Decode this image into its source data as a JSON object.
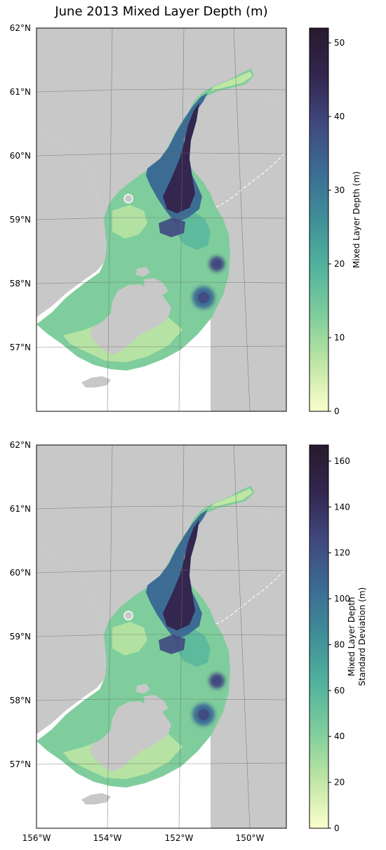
{
  "title": "June 2013 Mixed Layer Depth (m)",
  "lat_labels": [
    "62°N",
    "61°N",
    "60°N",
    "59°N",
    "58°N",
    "57°N"
  ],
  "lon_labels": [
    "156°W",
    "154°W",
    "152°W",
    "150°W"
  ],
  "colors": {
    "land": "#c8c8c8",
    "frame": "#000000",
    "graticule": "#6e6e6e"
  },
  "colormap": "deep (yellow-green-blue-dark purple)",
  "panels": [
    {
      "id": "mld",
      "colorbar": {
        "label_lines": [
          "Mixed Layer Depth (m)"
        ],
        "ticks": [
          "0",
          "10",
          "20",
          "30",
          "40",
          "50"
        ],
        "range": [
          0,
          52
        ]
      }
    },
    {
      "id": "mld_std",
      "colorbar": {
        "label_lines": [
          "Mixed Layer Depth",
          "Standard Deviation (m)"
        ],
        "ticks": [
          "0",
          "20",
          "40",
          "60",
          "80",
          "100",
          "120",
          "140",
          "160"
        ],
        "range": [
          0,
          167
        ]
      }
    }
  ]
}
